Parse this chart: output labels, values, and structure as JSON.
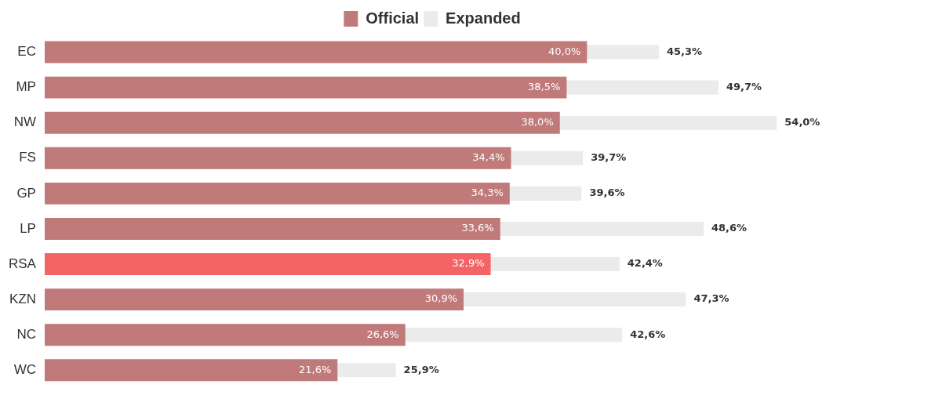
{
  "chart_data": {
    "type": "bar",
    "orientation": "horizontal",
    "categories": [
      "EC",
      "MP",
      "NW",
      "FS",
      "GP",
      "LP",
      "RSA",
      "KZN",
      "NC",
      "WC"
    ],
    "series": [
      {
        "name": "Official",
        "colors": [
          "#c07a7a",
          "#c07a7a",
          "#c07a7a",
          "#c07a7a",
          "#c07a7a",
          "#c07a7a",
          "#f46464",
          "#c07a7a",
          "#c07a7a",
          "#c07a7a"
        ],
        "values": [
          40.0,
          38.5,
          38.0,
          34.4,
          34.3,
          33.6,
          32.9,
          30.9,
          26.6,
          21.6
        ],
        "value_labels": [
          "40,0%",
          "38,5%",
          "38,0%",
          "34,4%",
          "34,3%",
          "33,6%",
          "32,9%",
          "30,9%",
          "26,6%",
          "21,6%"
        ]
      },
      {
        "name": "Expanded",
        "color": "#ebebeb",
        "values": [
          45.3,
          49.7,
          54.0,
          39.7,
          39.6,
          48.6,
          42.4,
          47.3,
          42.6,
          25.9
        ],
        "value_labels": [
          "45,3%",
          "49,7%",
          "54,0%",
          "39,7%",
          "39,6%",
          "48,6%",
          "42,4%",
          "47,3%",
          "42,6%",
          "25,9%"
        ]
      }
    ],
    "tick_labels": "y",
    "legend": "top"
  }
}
